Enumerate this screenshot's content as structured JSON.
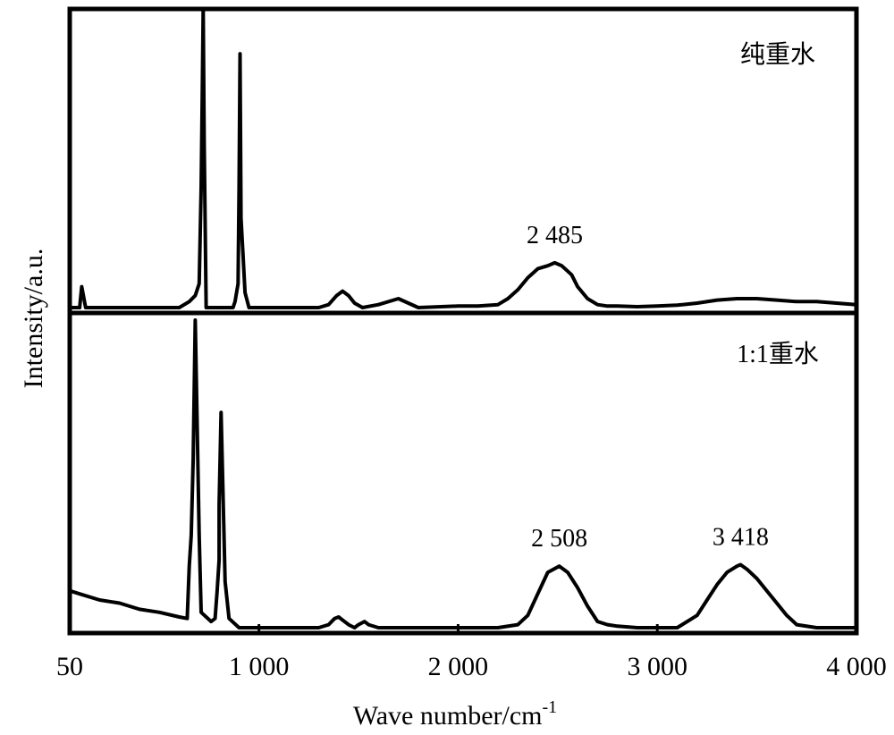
{
  "chart_data": {
    "type": "line",
    "xlabel": "Wave number/cm",
    "xlabel_superscript": "-1",
    "ylabel": "Intensity/a.u.",
    "xlim": [
      50,
      4000
    ],
    "x_ticks": [
      {
        "value": 50,
        "label": "50"
      },
      {
        "value": 1000,
        "label": "1 000"
      },
      {
        "value": 2000,
        "label": "2 000"
      },
      {
        "value": 3000,
        "label": "3 000"
      },
      {
        "value": 4000,
        "label": "4 000"
      }
    ],
    "series": [
      {
        "name": "纯重水",
        "annotations": [
          {
            "x": 2485,
            "label": "2 485"
          }
        ],
        "x": [
          50,
          100,
          110,
          130,
          200,
          300,
          400,
          500,
          600,
          650,
          680,
          700,
          710,
          715,
          720,
          725,
          735,
          760,
          800,
          850,
          870,
          880,
          895,
          900,
          905,
          910,
          930,
          950,
          1000,
          1100,
          1200,
          1300,
          1350,
          1390,
          1420,
          1450,
          1480,
          1520,
          1600,
          1700,
          1800,
          2000,
          2100,
          2200,
          2250,
          2300,
          2350,
          2400,
          2450,
          2485,
          2520,
          2570,
          2600,
          2650,
          2700,
          2750,
          2800,
          2900,
          3000,
          3100,
          3200,
          3300,
          3400,
          3500,
          3600,
          3700,
          3800,
          3900,
          4000
        ],
        "y": [
          0,
          0,
          0.07,
          0,
          0,
          0,
          0,
          0,
          0,
          0.02,
          0.04,
          0.08,
          0.4,
          0.7,
          1.0,
          0.55,
          0,
          0,
          0,
          0,
          0,
          0.02,
          0.08,
          0.4,
          0.85,
          0.3,
          0.05,
          0,
          0,
          0,
          0,
          0,
          0.01,
          0.04,
          0.055,
          0.04,
          0.015,
          0,
          0.01,
          0.03,
          0,
          0.005,
          0.005,
          0.01,
          0.03,
          0.06,
          0.1,
          0.13,
          0.14,
          0.15,
          0.14,
          0.11,
          0.07,
          0.03,
          0.01,
          0.005,
          0.005,
          0.003,
          0.005,
          0.008,
          0.015,
          0.025,
          0.03,
          0.03,
          0.025,
          0.02,
          0.02,
          0.015,
          0.01
        ]
      },
      {
        "name": "1:1重水",
        "annotations": [
          {
            "x": 2508,
            "label": "2 508"
          },
          {
            "x": 3418,
            "label": "3 418"
          }
        ],
        "x": [
          50,
          100,
          200,
          300,
          400,
          500,
          600,
          640,
          650,
          660,
          670,
          680,
          700,
          710,
          760,
          780,
          790,
          800,
          800,
          810,
          830,
          850,
          900,
          1000,
          1100,
          1200,
          1300,
          1350,
          1380,
          1400,
          1420,
          1450,
          1480,
          1500,
          1530,
          1550,
          1600,
          1700,
          1800,
          1900,
          2000,
          2100,
          2200,
          2300,
          2350,
          2400,
          2450,
          2508,
          2550,
          2600,
          2650,
          2700,
          2750,
          2800,
          2900,
          3000,
          3100,
          3200,
          3250,
          3300,
          3350,
          3400,
          3418,
          3450,
          3500,
          3550,
          3600,
          3650,
          3700,
          3800,
          3900,
          4000
        ],
        "y": [
          0.12,
          0.11,
          0.09,
          0.08,
          0.06,
          0.05,
          0.035,
          0.03,
          0.2,
          0.3,
          0.55,
          1.0,
          0.3,
          0.05,
          0.02,
          0.03,
          0.12,
          0.22,
          0.4,
          0.7,
          0.15,
          0.03,
          0,
          0,
          0,
          0,
          0,
          0.01,
          0.03,
          0.035,
          0.025,
          0.01,
          0,
          0.01,
          0.02,
          0.01,
          0,
          0,
          0,
          0,
          0,
          0,
          0,
          0.01,
          0.04,
          0.11,
          0.18,
          0.2,
          0.18,
          0.13,
          0.07,
          0.02,
          0.01,
          0.005,
          0,
          0,
          0,
          0.04,
          0.09,
          0.14,
          0.18,
          0.2,
          0.205,
          0.19,
          0.16,
          0.12,
          0.08,
          0.04,
          0.01,
          0,
          0,
          0
        ]
      }
    ]
  }
}
